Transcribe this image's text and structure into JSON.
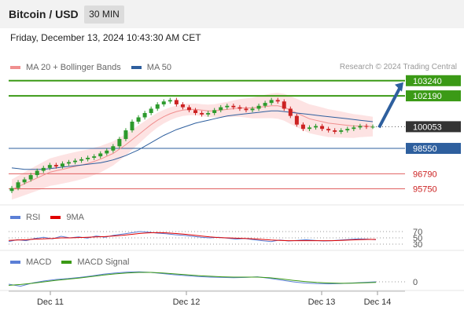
{
  "header": {
    "title": "Bitcoin / USD",
    "timeframe": "30 MIN"
  },
  "datetime": "Friday, December 13, 2024 10:43:30 AM CET",
  "main_legend": [
    {
      "label": "MA 20 + Bollinger Bands",
      "color": "#f08f8f"
    },
    {
      "label": "MA 50",
      "color": "#2e5f9e"
    }
  ],
  "credit": "Research © 2024 Trading Central",
  "rsi_legend": [
    {
      "label": "RSI",
      "color": "#5b7fd6"
    },
    {
      "label": "9MA",
      "color": "#e00000"
    }
  ],
  "macd_legend": [
    {
      "label": "MACD",
      "color": "#5b7fd6"
    },
    {
      "label": "MACD Signal",
      "color": "#3b9a16"
    }
  ],
  "colors": {
    "resistance": "#3b9a16",
    "pivot": "#2e5f9e",
    "support": "#e06060",
    "current": "#333333",
    "arrow": "#2e5f9e",
    "up_candle": "#2c9a2c",
    "down_candle": "#cc2222"
  },
  "chart_data": [
    {
      "type": "line",
      "title": "Bitcoin / USD",
      "x_ticks": [
        "Dec 11",
        "Dec 12",
        "Dec 13",
        "Dec 14"
      ],
      "y_labels": [
        {
          "value": 103240,
          "label": "103240",
          "role": "resistance-2"
        },
        {
          "value": 102190,
          "label": "102190",
          "role": "resistance-1"
        },
        {
          "value": 100053,
          "label": "100053",
          "role": "current-price"
        },
        {
          "value": 98550,
          "label": "98550",
          "role": "pivot"
        },
        {
          "value": 96790,
          "label": "96790",
          "role": "support-1"
        },
        {
          "value": 95750,
          "label": "95750",
          "role": "support-2"
        }
      ],
      "ylim": [
        94800,
        103500
      ],
      "series": [
        {
          "name": "Close",
          "values": [
            95800,
            96200,
            96400,
            96700,
            97000,
            97200,
            97400,
            97300,
            97500,
            97600,
            97700,
            97800,
            97900,
            98000,
            98200,
            98400,
            98700,
            99200,
            99800,
            100400,
            100700,
            101000,
            101300,
            101600,
            101800,
            101900,
            101600,
            101400,
            101200,
            101000,
            100900,
            101000,
            101200,
            101400,
            101500,
            101400,
            101300,
            101200,
            101300,
            101500,
            101700,
            101900,
            101800,
            101300,
            100800,
            100200,
            99900,
            100000,
            100100,
            99900,
            99800,
            99700,
            99800,
            99900,
            100000,
            100100,
            100050,
            100053
          ]
        },
        {
          "name": "MA 20",
          "values": [
            95700,
            95900,
            96100,
            96300,
            96500,
            96700,
            96900,
            97000,
            97100,
            97200,
            97300,
            97400,
            97500,
            97650,
            97800,
            98000,
            98200,
            98500,
            98800,
            99150,
            99500,
            99850,
            100200,
            100500,
            100750,
            100950,
            101100,
            101200,
            101250,
            101250,
            101200,
            101150,
            101150,
            101200,
            101250,
            101300,
            101350,
            101350,
            101350,
            101400,
            101450,
            101500,
            101500,
            101400,
            101200,
            101000,
            100800,
            100600,
            100500,
            100400,
            100300,
            100250,
            100200,
            100150,
            100100,
            100100,
            100080,
            100060
          ]
        },
        {
          "name": "MA 50",
          "values": [
            97200,
            97150,
            97100,
            97100,
            97100,
            97100,
            97150,
            97200,
            97250,
            97300,
            97350,
            97400,
            97450,
            97500,
            97550,
            97650,
            97750,
            97900,
            98050,
            98250,
            98450,
            98700,
            98950,
            99200,
            99450,
            99650,
            99850,
            100000,
            100150,
            100300,
            100400,
            100500,
            100600,
            100700,
            100800,
            100850,
            100900,
            100950,
            101000,
            101050,
            101100,
            101150,
            101150,
            101100,
            101050,
            101000,
            100950,
            100900,
            100850,
            100800,
            100750,
            100700,
            100650,
            100600,
            100550,
            100500,
            100450,
            100400
          ]
        }
      ]
    },
    {
      "type": "line",
      "title": "",
      "y_ticks": [
        70,
        50,
        30
      ],
      "ylim": [
        20,
        80
      ],
      "series": [
        {
          "name": "RSI",
          "values": [
            38,
            44,
            41,
            48,
            52,
            47,
            55,
            50,
            53,
            49,
            56,
            52,
            58,
            62,
            66,
            70,
            68,
            65,
            63,
            60,
            58,
            55,
            52,
            50,
            52,
            49,
            46,
            48,
            44,
            41,
            38,
            43,
            40,
            42,
            44,
            42,
            40,
            41,
            43,
            45,
            47,
            46,
            44
          ]
        },
        {
          "name": "9MA",
          "values": [
            42,
            43,
            44,
            46,
            47,
            48,
            50,
            50,
            51,
            52,
            53,
            54,
            56,
            58,
            61,
            64,
            66,
            67,
            66,
            64,
            62,
            59,
            56,
            53,
            51,
            50,
            49,
            48,
            47,
            45,
            43,
            42,
            41,
            41,
            41,
            41,
            41,
            41,
            42,
            43,
            44,
            45,
            45
          ]
        }
      ]
    },
    {
      "type": "line",
      "title": "",
      "y_ticks": [
        0
      ],
      "ylim": [
        -400,
        400
      ],
      "series": [
        {
          "name": "MACD",
          "values": [
            -80,
            -150,
            -40,
            30,
            80,
            110,
            150,
            200,
            260,
            300,
            330,
            340,
            320,
            280,
            240,
            210,
            180,
            160,
            150,
            140,
            150,
            170,
            120,
            60,
            0,
            -40,
            -60,
            -70,
            -60,
            -40,
            -20,
            0
          ]
        },
        {
          "name": "MACD Signal",
          "values": [
            -120,
            -90,
            -50,
            0,
            50,
            90,
            130,
            180,
            230,
            270,
            300,
            320,
            320,
            300,
            270,
            240,
            210,
            190,
            170,
            160,
            160,
            160,
            140,
            100,
            50,
            10,
            -20,
            -40,
            -50,
            -45,
            -35,
            -20
          ]
        }
      ]
    }
  ]
}
